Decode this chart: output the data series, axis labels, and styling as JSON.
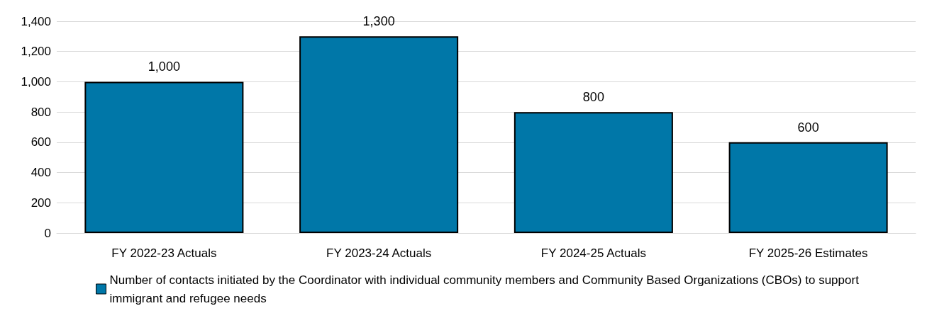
{
  "chart_data": {
    "type": "bar",
    "categories": [
      "FY 2022-23 Actuals",
      "FY 2023-24 Actuals",
      "FY 2024-25 Actuals",
      "FY 2025-26 Estimates"
    ],
    "series": [
      {
        "name": "Number of contacts initiated by the Coordinator with individual community members and Community Based Organizations (CBOs) to support immigrant and refugee needs",
        "color": "#0077a8",
        "values": [
          1000,
          1300,
          800,
          600
        ],
        "value_labels": [
          "1,000",
          "1,300",
          "800",
          "600"
        ]
      }
    ],
    "ylim": [
      0,
      1400
    ],
    "yticks": [
      0,
      200,
      400,
      600,
      800,
      {
        "value": 1000,
        "label": "1,000"
      },
      {
        "value": 1200,
        "label": "1,200"
      },
      {
        "value": 1400,
        "label": "1,400"
      }
    ],
    "grid": "y",
    "legend": "bottom"
  }
}
